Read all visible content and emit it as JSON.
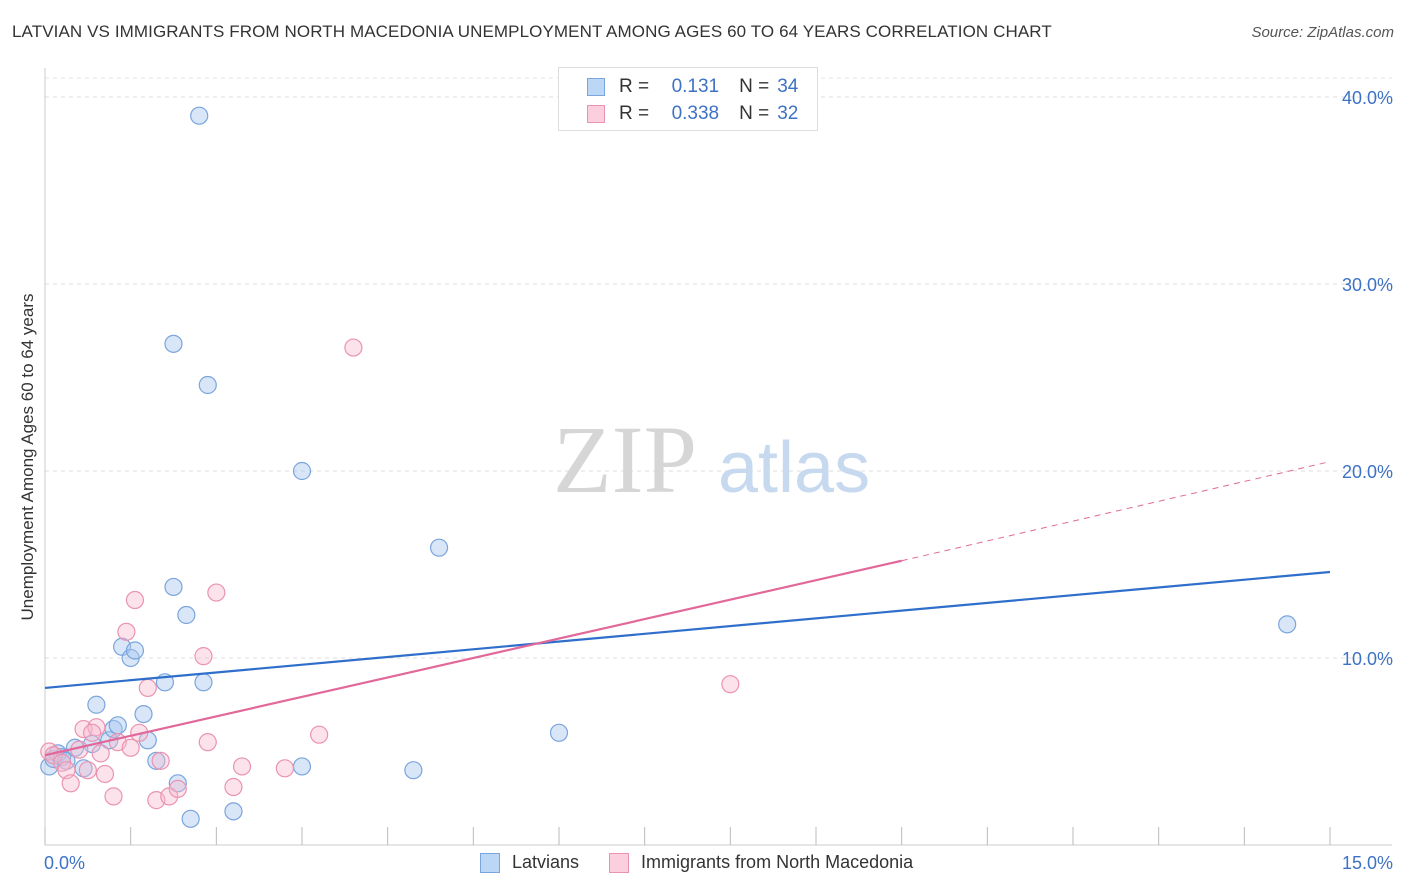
{
  "header": {
    "title": "LATVIAN VS IMMIGRANTS FROM NORTH MACEDONIA UNEMPLOYMENT AMONG AGES 60 TO 64 YEARS CORRELATION CHART",
    "source": "Source: ZipAtlas.com"
  },
  "watermark": {
    "zip": "ZIP",
    "atlas": "atlas"
  },
  "legend": {
    "rows": [
      {
        "r_label": "R =",
        "r_value": "0.131",
        "n_label": "N =",
        "n_value": "34"
      },
      {
        "r_label": "R =",
        "r_value": "0.338",
        "n_label": "N =",
        "n_value": "32"
      }
    ]
  },
  "chart_data": {
    "type": "scatter",
    "title": "LATVIAN VS IMMIGRANTS FROM NORTH MACEDONIA UNEMPLOYMENT AMONG AGES 60 TO 64 YEARS CORRELATION CHART",
    "xlabel": "",
    "ylabel": "Unemployment Among Ages 60 to 64 years",
    "xlim": [
      0,
      15
    ],
    "ylim": [
      0,
      40
    ],
    "x_tick_labels": [
      "0.0%",
      "15.0%"
    ],
    "y_ticks": [
      10,
      20,
      30,
      40
    ],
    "y_tick_labels": [
      "10.0%",
      "20.0%",
      "30.0%",
      "40.0%"
    ],
    "grid": true,
    "legend_position": "top-center",
    "colors": {
      "Latvians": "#a8c8f0",
      "Latvians_line": "#2f6fcb",
      "Immigrants from North Macedonia": "#f7b8cc",
      "Immigrants_line": "#e2689a"
    },
    "series": [
      {
        "name": "Latvians",
        "points": [
          [
            0.05,
            4.2
          ],
          [
            0.1,
            4.6
          ],
          [
            0.15,
            4.9
          ],
          [
            0.2,
            4.7
          ],
          [
            0.25,
            4.5
          ],
          [
            0.35,
            5.2
          ],
          [
            0.45,
            4.1
          ],
          [
            0.55,
            5.4
          ],
          [
            0.6,
            7.5
          ],
          [
            0.75,
            5.6
          ],
          [
            0.8,
            6.2
          ],
          [
            0.85,
            6.4
          ],
          [
            0.9,
            10.6
          ],
          [
            1.0,
            10.0
          ],
          [
            1.05,
            10.4
          ],
          [
            1.15,
            7.0
          ],
          [
            1.2,
            5.6
          ],
          [
            1.3,
            4.5
          ],
          [
            1.4,
            8.7
          ],
          [
            1.5,
            13.8
          ],
          [
            1.55,
            3.3
          ],
          [
            1.65,
            12.3
          ],
          [
            1.7,
            1.4
          ],
          [
            1.8,
            39.0
          ],
          [
            1.85,
            8.7
          ],
          [
            1.9,
            24.6
          ],
          [
            2.2,
            1.8
          ],
          [
            1.5,
            26.8
          ],
          [
            3.0,
            4.2
          ],
          [
            3.0,
            20.0
          ],
          [
            4.3,
            4.0
          ],
          [
            4.6,
            15.9
          ],
          [
            6.0,
            6.0
          ],
          [
            14.5,
            11.8
          ]
        ]
      },
      {
        "name": "Immigrants from North Macedonia",
        "points": [
          [
            0.05,
            5.0
          ],
          [
            0.1,
            4.8
          ],
          [
            0.2,
            4.4
          ],
          [
            0.25,
            4.0
          ],
          [
            0.3,
            3.3
          ],
          [
            0.4,
            5.1
          ],
          [
            0.45,
            6.2
          ],
          [
            0.5,
            4.0
          ],
          [
            0.6,
            6.3
          ],
          [
            0.65,
            4.9
          ],
          [
            0.7,
            3.8
          ],
          [
            0.8,
            2.6
          ],
          [
            0.85,
            5.5
          ],
          [
            0.95,
            11.4
          ],
          [
            1.0,
            5.2
          ],
          [
            1.05,
            13.1
          ],
          [
            1.1,
            6.0
          ],
          [
            1.2,
            8.4
          ],
          [
            1.3,
            2.4
          ],
          [
            1.35,
            4.5
          ],
          [
            1.45,
            2.6
          ],
          [
            1.55,
            3.0
          ],
          [
            1.85,
            10.1
          ],
          [
            1.9,
            5.5
          ],
          [
            2.0,
            13.5
          ],
          [
            2.2,
            3.1
          ],
          [
            2.3,
            4.2
          ],
          [
            2.8,
            4.1
          ],
          [
            3.2,
            5.9
          ],
          [
            3.6,
            26.6
          ],
          [
            8.0,
            8.6
          ],
          [
            0.55,
            6.0
          ]
        ]
      }
    ],
    "trendlines": [
      {
        "series": "Latvians",
        "x": [
          0,
          15
        ],
        "y": [
          8.4,
          14.6
        ],
        "style": "solid"
      },
      {
        "series": "Immigrants from North Macedonia",
        "x": [
          0,
          10
        ],
        "y": [
          4.8,
          15.2
        ],
        "style": "solid"
      },
      {
        "series": "Immigrants from North Macedonia",
        "x": [
          10,
          15
        ],
        "y": [
          15.2,
          20.5
        ],
        "style": "dashed"
      }
    ]
  },
  "bottom_legend": {
    "items": [
      "Latvians",
      "Immigrants from North Macedonia"
    ]
  }
}
